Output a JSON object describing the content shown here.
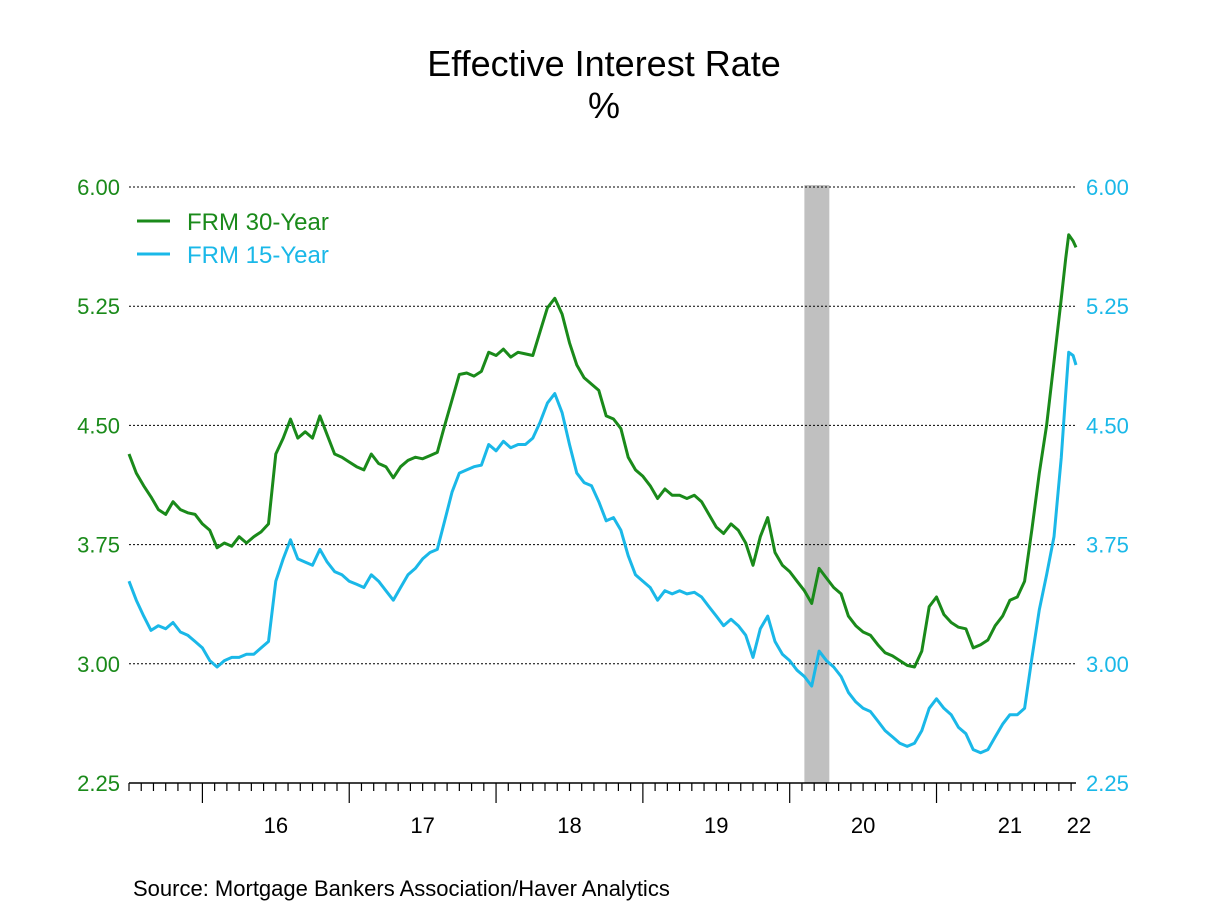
{
  "title": "Effective Interest Rate",
  "subtitle": "%",
  "source": "Source:  Mortgage Bankers Association/Haver Analytics",
  "colors": {
    "frm30": "#1a8a1a",
    "frm15": "#1ab8e8",
    "recession": "#c0c0c0"
  },
  "chart_data": {
    "type": "line",
    "title": "Effective Interest Rate",
    "subtitle": "%",
    "xlabel": "",
    "ylabel": "",
    "ylim": [
      2.25,
      6.0
    ],
    "yticks": [
      "6.00",
      "5.25",
      "4.50",
      "3.75",
      "3.00",
      "2.25"
    ],
    "xlim": [
      2015.5,
      2021.95
    ],
    "xticks": [
      {
        "x": 2016.5,
        "label": "16"
      },
      {
        "x": 2017.5,
        "label": "17"
      },
      {
        "x": 2018.5,
        "label": "18"
      },
      {
        "x": 2019.5,
        "label": "19"
      },
      {
        "x": 2020.5,
        "label": "20"
      },
      {
        "x": 2021.5,
        "label": "21"
      },
      {
        "x": 2022.0,
        "label": "22"
      }
    ],
    "grid": true,
    "legend_position": "top-left",
    "recession": {
      "start": 2020.1,
      "end": 2020.27
    },
    "series": [
      {
        "name": "FRM 30-Year",
        "axis": "left",
        "points": [
          [
            2015.5,
            4.32
          ],
          [
            2015.55,
            4.2
          ],
          [
            2015.6,
            4.12
          ],
          [
            2015.65,
            4.05
          ],
          [
            2015.7,
            3.97
          ],
          [
            2015.75,
            3.94
          ],
          [
            2015.8,
            4.02
          ],
          [
            2015.85,
            3.97
          ],
          [
            2015.9,
            3.95
          ],
          [
            2015.95,
            3.94
          ],
          [
            2016.0,
            3.88
          ],
          [
            2016.05,
            3.84
          ],
          [
            2016.1,
            3.73
          ],
          [
            2016.15,
            3.76
          ],
          [
            2016.2,
            3.74
          ],
          [
            2016.25,
            3.8
          ],
          [
            2016.3,
            3.76
          ],
          [
            2016.35,
            3.8
          ],
          [
            2016.4,
            3.83
          ],
          [
            2016.45,
            3.88
          ],
          [
            2016.5,
            4.32
          ],
          [
            2016.55,
            4.42
          ],
          [
            2016.6,
            4.54
          ],
          [
            2016.65,
            4.42
          ],
          [
            2016.7,
            4.46
          ],
          [
            2016.75,
            4.42
          ],
          [
            2016.8,
            4.56
          ],
          [
            2016.85,
            4.44
          ],
          [
            2016.9,
            4.32
          ],
          [
            2016.95,
            4.3
          ],
          [
            2017.0,
            4.27
          ],
          [
            2017.05,
            4.24
          ],
          [
            2017.1,
            4.22
          ],
          [
            2017.15,
            4.32
          ],
          [
            2017.2,
            4.26
          ],
          [
            2017.25,
            4.24
          ],
          [
            2017.3,
            4.17
          ],
          [
            2017.35,
            4.24
          ],
          [
            2017.4,
            4.28
          ],
          [
            2017.45,
            4.3
          ],
          [
            2017.5,
            4.29
          ],
          [
            2017.55,
            4.31
          ],
          [
            2017.6,
            4.33
          ],
          [
            2017.65,
            4.5
          ],
          [
            2017.7,
            4.66
          ],
          [
            2017.75,
            4.82
          ],
          [
            2017.8,
            4.83
          ],
          [
            2017.85,
            4.81
          ],
          [
            2017.9,
            4.84
          ],
          [
            2017.95,
            4.96
          ],
          [
            2018.0,
            4.94
          ],
          [
            2018.05,
            4.98
          ],
          [
            2018.1,
            4.93
          ],
          [
            2018.15,
            4.96
          ],
          [
            2018.2,
            4.95
          ],
          [
            2018.25,
            4.94
          ],
          [
            2018.3,
            5.09
          ],
          [
            2018.35,
            5.24
          ],
          [
            2018.4,
            5.3
          ],
          [
            2018.45,
            5.2
          ],
          [
            2018.5,
            5.02
          ],
          [
            2018.55,
            4.88
          ],
          [
            2018.6,
            4.8
          ],
          [
            2018.65,
            4.76
          ],
          [
            2018.7,
            4.72
          ],
          [
            2018.75,
            4.56
          ],
          [
            2018.8,
            4.54
          ],
          [
            2018.85,
            4.48
          ],
          [
            2018.9,
            4.3
          ],
          [
            2018.95,
            4.22
          ],
          [
            2019.0,
            4.18
          ],
          [
            2019.05,
            4.12
          ],
          [
            2019.1,
            4.04
          ],
          [
            2019.15,
            4.1
          ],
          [
            2019.2,
            4.06
          ],
          [
            2019.25,
            4.06
          ],
          [
            2019.3,
            4.04
          ],
          [
            2019.35,
            4.06
          ],
          [
            2019.4,
            4.02
          ],
          [
            2019.45,
            3.94
          ],
          [
            2019.5,
            3.86
          ],
          [
            2019.55,
            3.82
          ],
          [
            2019.6,
            3.88
          ],
          [
            2019.65,
            3.84
          ],
          [
            2019.7,
            3.76
          ],
          [
            2019.75,
            3.62
          ],
          [
            2019.8,
            3.8
          ],
          [
            2019.85,
            3.92
          ],
          [
            2019.9,
            3.7
          ],
          [
            2019.95,
            3.62
          ],
          [
            2020.0,
            3.58
          ],
          [
            2020.05,
            3.52
          ],
          [
            2020.1,
            3.46
          ],
          [
            2020.15,
            3.38
          ],
          [
            2020.2,
            3.6
          ],
          [
            2020.25,
            3.54
          ],
          [
            2020.3,
            3.48
          ],
          [
            2020.35,
            3.44
          ],
          [
            2020.4,
            3.3
          ],
          [
            2020.45,
            3.24
          ],
          [
            2020.5,
            3.2
          ],
          [
            2020.55,
            3.18
          ],
          [
            2020.6,
            3.12
          ],
          [
            2020.65,
            3.07
          ],
          [
            2020.7,
            3.05
          ],
          [
            2020.75,
            3.02
          ],
          [
            2020.8,
            2.99
          ],
          [
            2020.85,
            2.98
          ],
          [
            2020.9,
            3.08
          ],
          [
            2020.95,
            3.36
          ],
          [
            2021.0,
            3.42
          ],
          [
            2021.05,
            3.31
          ],
          [
            2021.1,
            3.26
          ],
          [
            2021.15,
            3.23
          ],
          [
            2021.2,
            3.22
          ],
          [
            2021.25,
            3.1
          ],
          [
            2021.3,
            3.12
          ],
          [
            2021.35,
            3.15
          ],
          [
            2021.4,
            3.24
          ],
          [
            2021.45,
            3.3
          ],
          [
            2021.5,
            3.4
          ],
          [
            2021.55,
            3.42
          ],
          [
            2021.6,
            3.52
          ],
          [
            2021.65,
            3.85
          ],
          [
            2021.7,
            4.2
          ],
          [
            2021.75,
            4.5
          ],
          [
            2021.8,
            4.9
          ],
          [
            2021.85,
            5.3
          ],
          [
            2021.88,
            5.55
          ],
          [
            2021.9,
            5.7
          ],
          [
            2021.93,
            5.66
          ],
          [
            2021.95,
            5.62
          ]
        ]
      },
      {
        "name": "FRM 15-Year",
        "axis": "right",
        "points": [
          [
            2015.5,
            3.52
          ],
          [
            2015.55,
            3.4
          ],
          [
            2015.6,
            3.3
          ],
          [
            2015.65,
            3.21
          ],
          [
            2015.7,
            3.24
          ],
          [
            2015.75,
            3.22
          ],
          [
            2015.8,
            3.26
          ],
          [
            2015.85,
            3.2
          ],
          [
            2015.9,
            3.18
          ],
          [
            2015.95,
            3.14
          ],
          [
            2016.0,
            3.1
          ],
          [
            2016.05,
            3.02
          ],
          [
            2016.1,
            2.98
          ],
          [
            2016.15,
            3.02
          ],
          [
            2016.2,
            3.04
          ],
          [
            2016.25,
            3.04
          ],
          [
            2016.3,
            3.06
          ],
          [
            2016.35,
            3.06
          ],
          [
            2016.4,
            3.1
          ],
          [
            2016.45,
            3.14
          ],
          [
            2016.5,
            3.52
          ],
          [
            2016.55,
            3.66
          ],
          [
            2016.6,
            3.78
          ],
          [
            2016.65,
            3.66
          ],
          [
            2016.7,
            3.64
          ],
          [
            2016.75,
            3.62
          ],
          [
            2016.8,
            3.72
          ],
          [
            2016.85,
            3.64
          ],
          [
            2016.9,
            3.58
          ],
          [
            2016.95,
            3.56
          ],
          [
            2017.0,
            3.52
          ],
          [
            2017.05,
            3.5
          ],
          [
            2017.1,
            3.48
          ],
          [
            2017.15,
            3.56
          ],
          [
            2017.2,
            3.52
          ],
          [
            2017.25,
            3.46
          ],
          [
            2017.3,
            3.4
          ],
          [
            2017.35,
            3.48
          ],
          [
            2017.4,
            3.56
          ],
          [
            2017.45,
            3.6
          ],
          [
            2017.5,
            3.66
          ],
          [
            2017.55,
            3.7
          ],
          [
            2017.6,
            3.72
          ],
          [
            2017.65,
            3.9
          ],
          [
            2017.7,
            4.08
          ],
          [
            2017.75,
            4.2
          ],
          [
            2017.8,
            4.22
          ],
          [
            2017.85,
            4.24
          ],
          [
            2017.9,
            4.25
          ],
          [
            2017.95,
            4.38
          ],
          [
            2018.0,
            4.34
          ],
          [
            2018.05,
            4.4
          ],
          [
            2018.1,
            4.36
          ],
          [
            2018.15,
            4.38
          ],
          [
            2018.2,
            4.38
          ],
          [
            2018.25,
            4.42
          ],
          [
            2018.3,
            4.52
          ],
          [
            2018.35,
            4.64
          ],
          [
            2018.4,
            4.7
          ],
          [
            2018.45,
            4.58
          ],
          [
            2018.5,
            4.38
          ],
          [
            2018.55,
            4.2
          ],
          [
            2018.6,
            4.14
          ],
          [
            2018.65,
            4.12
          ],
          [
            2018.7,
            4.02
          ],
          [
            2018.75,
            3.9
          ],
          [
            2018.8,
            3.92
          ],
          [
            2018.85,
            3.84
          ],
          [
            2018.9,
            3.68
          ],
          [
            2018.95,
            3.56
          ],
          [
            2019.0,
            3.52
          ],
          [
            2019.05,
            3.48
          ],
          [
            2019.1,
            3.4
          ],
          [
            2019.15,
            3.46
          ],
          [
            2019.2,
            3.44
          ],
          [
            2019.25,
            3.46
          ],
          [
            2019.3,
            3.44
          ],
          [
            2019.35,
            3.45
          ],
          [
            2019.4,
            3.42
          ],
          [
            2019.45,
            3.36
          ],
          [
            2019.5,
            3.3
          ],
          [
            2019.55,
            3.24
          ],
          [
            2019.6,
            3.28
          ],
          [
            2019.65,
            3.24
          ],
          [
            2019.7,
            3.18
          ],
          [
            2019.75,
            3.04
          ],
          [
            2019.8,
            3.22
          ],
          [
            2019.85,
            3.3
          ],
          [
            2019.9,
            3.14
          ],
          [
            2019.95,
            3.06
          ],
          [
            2020.0,
            3.02
          ],
          [
            2020.05,
            2.96
          ],
          [
            2020.1,
            2.92
          ],
          [
            2020.15,
            2.86
          ],
          [
            2020.2,
            3.08
          ],
          [
            2020.25,
            3.02
          ],
          [
            2020.3,
            2.98
          ],
          [
            2020.35,
            2.92
          ],
          [
            2020.4,
            2.82
          ],
          [
            2020.45,
            2.76
          ],
          [
            2020.5,
            2.72
          ],
          [
            2020.55,
            2.7
          ],
          [
            2020.6,
            2.64
          ],
          [
            2020.65,
            2.58
          ],
          [
            2020.7,
            2.54
          ],
          [
            2020.75,
            2.5
          ],
          [
            2020.8,
            2.48
          ],
          [
            2020.85,
            2.5
          ],
          [
            2020.9,
            2.58
          ],
          [
            2020.95,
            2.72
          ],
          [
            2021.0,
            2.78
          ],
          [
            2021.05,
            2.72
          ],
          [
            2021.1,
            2.68
          ],
          [
            2021.15,
            2.6
          ],
          [
            2021.2,
            2.56
          ],
          [
            2021.25,
            2.46
          ],
          [
            2021.3,
            2.44
          ],
          [
            2021.35,
            2.46
          ],
          [
            2021.4,
            2.54
          ],
          [
            2021.45,
            2.62
          ],
          [
            2021.5,
            2.68
          ],
          [
            2021.55,
            2.68
          ],
          [
            2021.6,
            2.72
          ],
          [
            2021.65,
            3.04
          ],
          [
            2021.7,
            3.34
          ],
          [
            2021.75,
            3.56
          ],
          [
            2021.8,
            3.8
          ],
          [
            2021.85,
            4.3
          ],
          [
            2021.88,
            4.7
          ],
          [
            2021.9,
            4.96
          ],
          [
            2021.93,
            4.94
          ],
          [
            2021.95,
            4.88
          ]
        ]
      }
    ]
  }
}
